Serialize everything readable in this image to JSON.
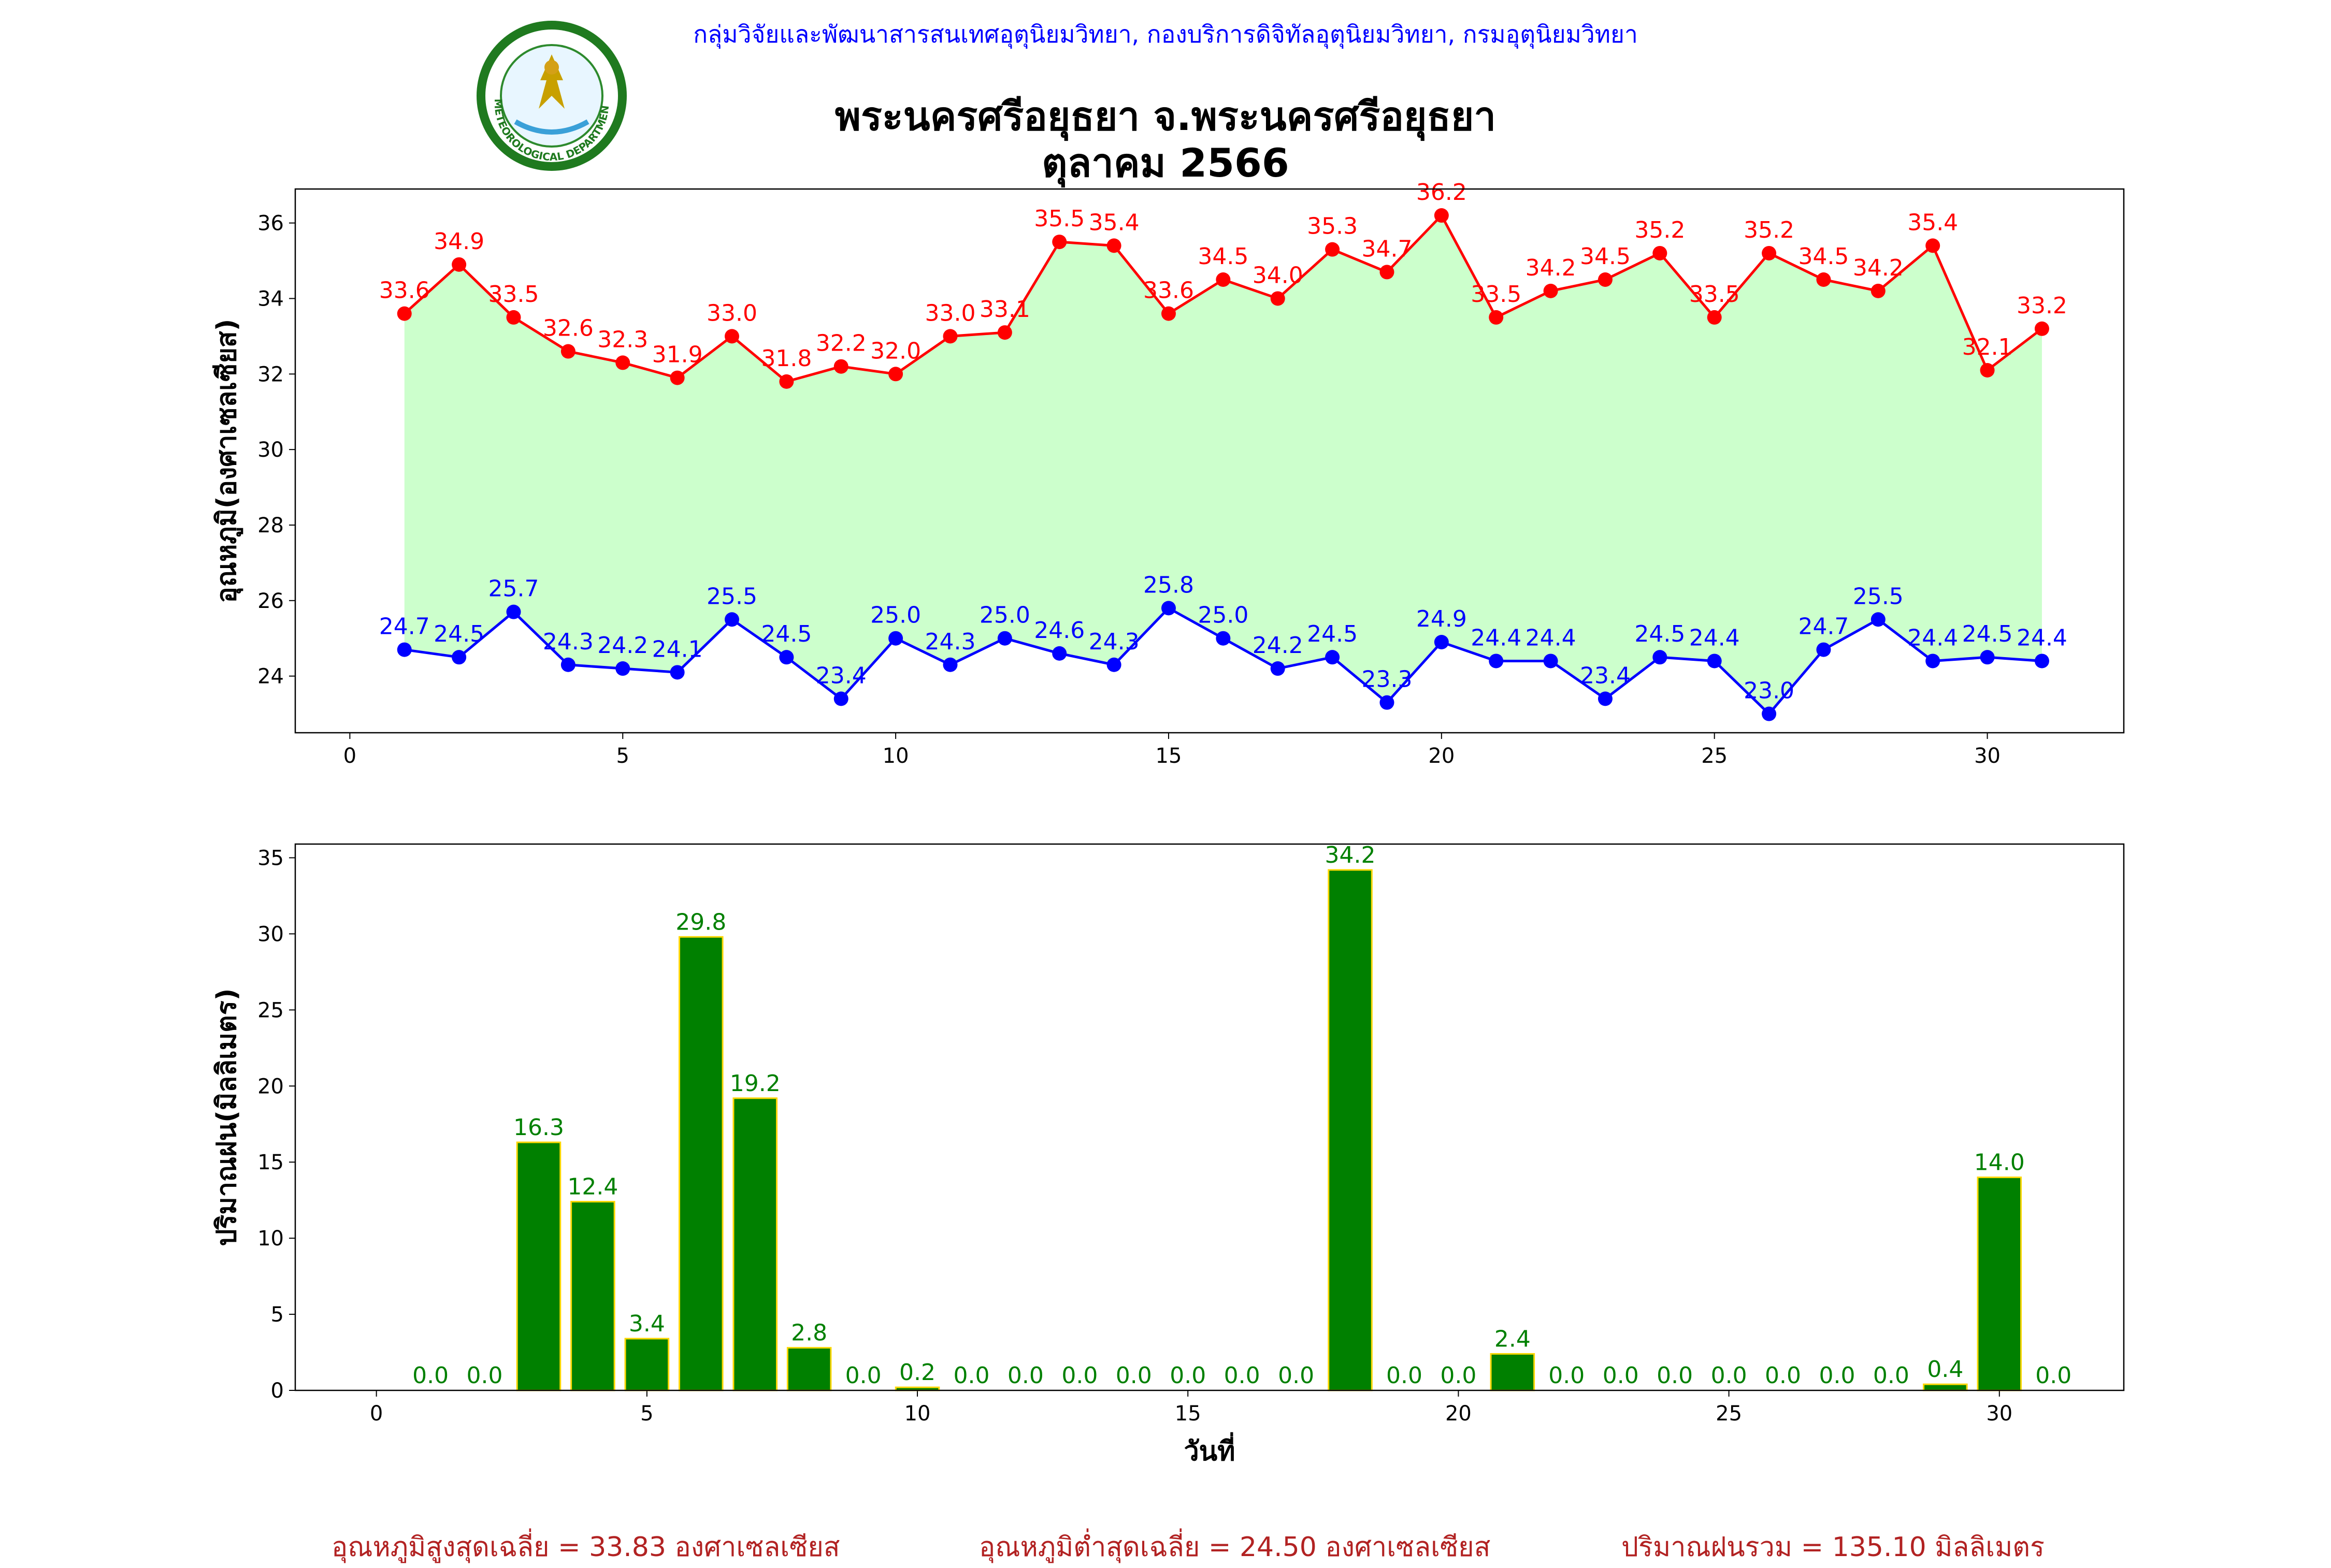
{
  "header": {
    "credit": "กลุ่มวิจัยและพัฒนาสารสนเทศอุตุนิยมวิทยา, กองบริการดิจิทัลอุตุนิยมวิทยา, กรมอุตุนิยมวิทยา",
    "title_line1": "พระนครศรีอยุธยา จ.พระนครศรีอยุธยา",
    "title_line2": "ตุลาคม 2566",
    "logo_text": "METEOROLOGICAL DEPARTMENT"
  },
  "colors": {
    "max_temp": "#ff0000",
    "min_temp": "#0000ff",
    "fill": "#ccffcc",
    "rain_bar": "#008000",
    "rain_edge": "#ffd700",
    "summary": "#b22222"
  },
  "chart_data": [
    {
      "type": "line",
      "ylabel": "อุณหภูมิ(องศาเซลเซียส)",
      "xlabel": "",
      "xlim": [
        -1,
        32.5
      ],
      "ylim": [
        22.5,
        36.9
      ],
      "xticks": [
        0,
        5,
        10,
        15,
        20,
        25,
        30
      ],
      "yticks": [
        24,
        26,
        28,
        30,
        32,
        34,
        36
      ],
      "x": [
        1,
        2,
        3,
        4,
        5,
        6,
        7,
        8,
        9,
        10,
        11,
        12,
        13,
        14,
        15,
        16,
        17,
        18,
        19,
        20,
        21,
        22,
        23,
        24,
        25,
        26,
        27,
        28,
        29,
        30,
        31
      ],
      "series": [
        {
          "values": [
            33.6,
            34.9,
            33.5,
            32.6,
            32.3,
            31.9,
            33.0,
            31.8,
            32.2,
            32.0,
            33.0,
            33.1,
            35.5,
            35.4,
            33.6,
            34.5,
            34.0,
            35.3,
            34.7,
            36.2,
            33.5,
            34.2,
            34.5,
            35.2,
            33.5,
            35.2,
            34.5,
            34.2,
            35.4,
            32.1,
            33.2
          ]
        },
        {
          "values": [
            24.7,
            24.5,
            25.7,
            24.3,
            24.2,
            24.1,
            25.5,
            24.5,
            23.4,
            25.0,
            24.3,
            25.0,
            24.6,
            24.3,
            25.8,
            25.0,
            24.2,
            24.5,
            23.3,
            24.9,
            24.4,
            24.4,
            23.4,
            24.5,
            24.4,
            23.0,
            24.7,
            25.5,
            24.4,
            24.5,
            24.4
          ]
        }
      ]
    },
    {
      "type": "bar",
      "ylabel": "ปริมาณฝน(มิลลิเมตร)",
      "xlabel": "วันที่",
      "xlim": [
        -1.5,
        32.3
      ],
      "ylim": [
        0,
        35.9
      ],
      "xticks": [
        0,
        5,
        10,
        15,
        20,
        25,
        30
      ],
      "yticks": [
        0,
        5,
        10,
        15,
        20,
        25,
        30,
        35
      ],
      "x": [
        1,
        2,
        3,
        4,
        5,
        6,
        7,
        8,
        9,
        10,
        11,
        12,
        13,
        14,
        15,
        16,
        17,
        18,
        19,
        20,
        21,
        22,
        23,
        24,
        25,
        26,
        27,
        28,
        29,
        30,
        31
      ],
      "values": [
        0.0,
        0.0,
        16.3,
        12.4,
        3.4,
        29.8,
        19.2,
        2.8,
        0.0,
        0.2,
        0.0,
        0.0,
        0.0,
        0.0,
        0.0,
        0.0,
        0.0,
        34.2,
        0.0,
        0.0,
        2.4,
        0.0,
        0.0,
        0.0,
        0.0,
        0.0,
        0.0,
        0.0,
        0.4,
        14.0,
        0.0
      ]
    }
  ],
  "summary": {
    "avg_max": "อุณหภูมิสูงสุดเฉลี่ย = 33.83 องศาเซลเซียส",
    "avg_min": "อุณหภูมิต่ำสุดเฉลี่ย = 24.50 องศาเซลเซียส",
    "total_rain": "ปริมาณฝนรวม = 135.10 มิลลิเมตร"
  }
}
